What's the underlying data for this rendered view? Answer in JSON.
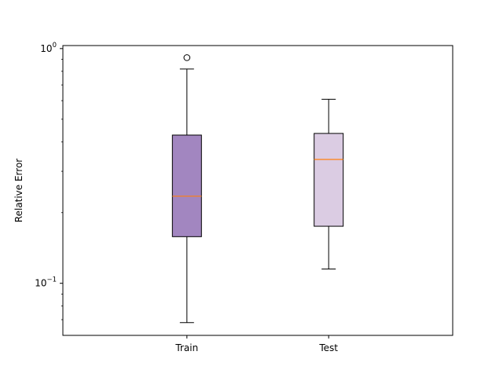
{
  "chart_data": {
    "type": "boxplot",
    "title": "",
    "xlabel": "",
    "ylabel": "Relative Error",
    "yscale": "log",
    "ylim": [
      0.06,
      1.03
    ],
    "grid": false,
    "categories": [
      "Train",
      "Test"
    ],
    "boxes": [
      {
        "name": "Train",
        "whisker_low": 0.068,
        "q1": 0.158,
        "median": 0.235,
        "q3": 0.428,
        "whisker_high": 0.818,
        "fliers": [
          0.915
        ],
        "color": "#a286c0"
      },
      {
        "name": "Test",
        "whisker_low": 0.115,
        "q1": 0.175,
        "median": 0.337,
        "q3": 0.435,
        "whisker_high": 0.608,
        "fliers": [],
        "color": "#dbcce3"
      }
    ],
    "median_color": "#ff7f0e",
    "yticks_major": [
      {
        "value": 0.1,
        "base": "10",
        "exp": "−1"
      },
      {
        "value": 1,
        "base": "10",
        "exp": "0"
      }
    ],
    "yticks_minor": [
      0.07,
      0.08,
      0.09,
      0.2,
      0.3,
      0.4,
      0.5,
      0.6,
      0.7,
      0.8,
      0.9
    ]
  }
}
